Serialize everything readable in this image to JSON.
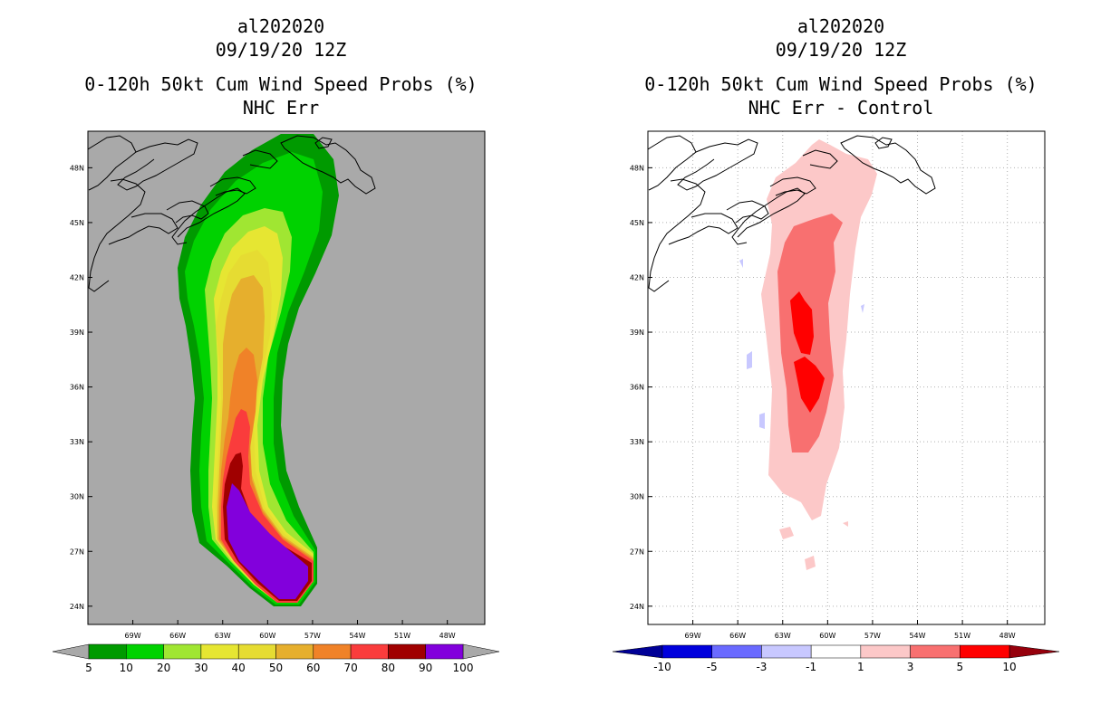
{
  "chart_data": [
    {
      "type": "heatmap",
      "title_lines": [
        "al202020",
        "09/19/20 12Z",
        "0-120h 50kt Cum Wind Speed Probs (%)",
        "NHC Err"
      ],
      "x_ticks": [
        "69W",
        "66W",
        "63W",
        "60W",
        "57W",
        "54W",
        "51W",
        "48W"
      ],
      "y_ticks": [
        "48N",
        "45N",
        "42N",
        "39N",
        "36N",
        "33N",
        "30N",
        "27N",
        "24N"
      ],
      "xlim": [
        -72,
        -45.5
      ],
      "ylim": [
        23,
        50
      ],
      "grid": false,
      "background": "#a9a9a9",
      "colorbar": {
        "labels": [
          "5",
          "10",
          "20",
          "30",
          "40",
          "50",
          "60",
          "70",
          "80",
          "90",
          "100"
        ],
        "colors": [
          "#009a00",
          "#00d200",
          "#a0e632",
          "#e6e632",
          "#e6dc32",
          "#e6af2d",
          "#f08228",
          "#fa3c3c",
          "#a00000",
          "#8200dc"
        ],
        "end_color": "#a9a9a9"
      }
    },
    {
      "type": "heatmap",
      "title_lines": [
        "al202020",
        "09/19/20 12Z",
        "0-120h 50kt Cum Wind Speed Probs (%)",
        "NHC Err - Control"
      ],
      "x_ticks": [
        "69W",
        "66W",
        "63W",
        "60W",
        "57W",
        "54W",
        "51W",
        "48W"
      ],
      "y_ticks": [
        "48N",
        "45N",
        "42N",
        "39N",
        "36N",
        "33N",
        "30N",
        "27N",
        "24N"
      ],
      "xlim": [
        -72,
        -45.5
      ],
      "ylim": [
        23,
        50
      ],
      "grid": true,
      "background": "#ffffff",
      "colorbar": {
        "labels": [
          "-10",
          "-5",
          "-3",
          "-1",
          "1",
          "3",
          "5",
          "10"
        ],
        "colors": [
          "#0000dc",
          "#6a6aff",
          "#c8c8ff",
          "#ffffff",
          "#fcc8c8",
          "#f87070",
          "#ff0000"
        ],
        "low_end_color": "#000096",
        "high_end_color": "#96000c"
      }
    }
  ]
}
